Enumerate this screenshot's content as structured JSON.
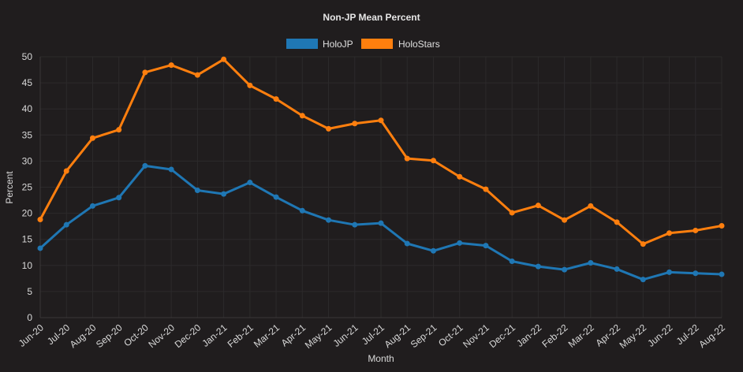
{
  "chart_data": {
    "type": "line",
    "title": "Non-JP Mean Percent",
    "xlabel": "Month",
    "ylabel": "Percent",
    "ylim": [
      0,
      50
    ],
    "yticks": [
      0,
      5,
      10,
      15,
      20,
      25,
      30,
      35,
      40,
      45,
      50
    ],
    "grid": true,
    "legend_position": "top-center",
    "categories": [
      "Jun-20",
      "Jul-20",
      "Aug-20",
      "Sep-20",
      "Oct-20",
      "Nov-20",
      "Dec-20",
      "Jan-21",
      "Feb-21",
      "Mar-21",
      "Apr-21",
      "May-21",
      "Jun-21",
      "Jul-21",
      "Aug-21",
      "Sep-21",
      "Oct-21",
      "Nov-21",
      "Dec-21",
      "Jan-22",
      "Feb-22",
      "Mar-22",
      "Apr-22",
      "May-22",
      "Jun-22",
      "Jul-22",
      "Aug-22"
    ],
    "series": [
      {
        "name": "HoloJP",
        "color": "#1f77b4",
        "values": [
          13.3,
          17.8,
          21.4,
          23.0,
          29.1,
          28.4,
          24.4,
          23.7,
          25.9,
          23.1,
          20.5,
          18.7,
          17.8,
          18.1,
          14.2,
          12.8,
          14.3,
          13.8,
          10.8,
          9.8,
          9.2,
          10.5,
          9.3,
          7.3,
          8.7,
          8.5,
          8.3
        ]
      },
      {
        "name": "HoloStars",
        "color": "#ff7f0e",
        "values": [
          18.8,
          28.1,
          34.4,
          36.0,
          47.0,
          48.4,
          46.5,
          49.5,
          44.5,
          41.9,
          38.7,
          36.2,
          37.2,
          37.8,
          30.5,
          30.1,
          27.0,
          24.6,
          20.1,
          21.5,
          18.7,
          21.4,
          18.3,
          14.1,
          16.2,
          16.7,
          17.6
        ]
      }
    ]
  }
}
